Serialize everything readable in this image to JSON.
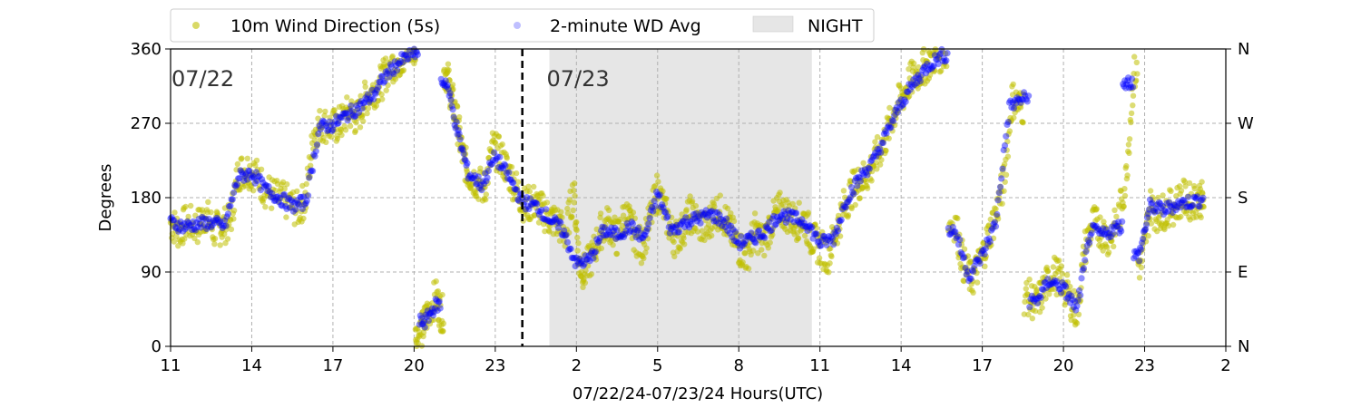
{
  "colors": {
    "wind_5s": "#bfbf00",
    "wd_avg": "#0000ff",
    "night": "#e6e6e6",
    "grid": "#b0b0b0",
    "midnight_line": "#000000"
  },
  "legend": {
    "items": [
      {
        "label": "10m Wind Direction (5s)",
        "marker": "dot",
        "color": "#bfbf00"
      },
      {
        "label": "2-minute WD Avg",
        "marker": "dot",
        "color": "#0000ff"
      },
      {
        "label": "NIGHT",
        "marker": "patch",
        "color": "#e6e6e6"
      }
    ]
  },
  "day_labels": [
    "07/22",
    "07/23"
  ],
  "chart_data": {
    "type": "scatter",
    "xlabel": "07/22/24-07/23/24  Hours(UTC)",
    "ylabel": "Degrees",
    "xlim": [
      11,
      50
    ],
    "ylim": [
      0,
      360
    ],
    "x_ticks": [
      11,
      14,
      17,
      20,
      23,
      26,
      29,
      32,
      35,
      38,
      41,
      44,
      47,
      50
    ],
    "x_tick_labels": [
      "11",
      "14",
      "17",
      "20",
      "23",
      "2",
      "5",
      "8",
      "11",
      "14",
      "17",
      "20",
      "23",
      "2"
    ],
    "y_ticks": [
      0,
      90,
      180,
      270,
      360
    ],
    "y_tick_labels": [
      "0",
      "90",
      "180",
      "270",
      "360"
    ],
    "right_tick_labels": [
      "N",
      "E",
      "S",
      "W",
      "N"
    ],
    "grid": true,
    "legend_position": "top-left, above plot",
    "midnight_x": 24.0,
    "night_span": [
      25.0,
      34.7
    ],
    "day_label_x": [
      11.0,
      25.0
    ],
    "series": [
      {
        "name": "10m Wind Direction (5s)",
        "points": [
          [
            11.0,
            150
          ],
          [
            11.3,
            140
          ],
          [
            11.6,
            150
          ],
          [
            12.0,
            145
          ],
          [
            12.3,
            160
          ],
          [
            12.6,
            140
          ],
          [
            12.9,
            145
          ],
          [
            13.2,
            150
          ],
          [
            13.5,
            210
          ],
          [
            13.8,
            215
          ],
          [
            14.1,
            210
          ],
          [
            14.5,
            190
          ],
          [
            14.9,
            180
          ],
          [
            15.3,
            175
          ],
          [
            15.7,
            165
          ],
          [
            16.0,
            180
          ],
          [
            16.3,
            260
          ],
          [
            16.6,
            270
          ],
          [
            17.0,
            265
          ],
          [
            17.3,
            270
          ],
          [
            17.6,
            285
          ],
          [
            17.9,
            275
          ],
          [
            18.2,
            300
          ],
          [
            18.5,
            310
          ],
          [
            18.8,
            320
          ],
          [
            19.1,
            340
          ],
          [
            19.4,
            345
          ],
          [
            19.7,
            355
          ],
          [
            20.0,
            360
          ],
          [
            20.1,
            10
          ],
          [
            20.3,
            20
          ],
          [
            20.5,
            40
          ],
          [
            20.8,
            60
          ],
          [
            21.0,
            40
          ],
          [
            21.2,
            330
          ],
          [
            21.4,
            300
          ],
          [
            21.6,
            270
          ],
          [
            21.8,
            230
          ],
          [
            22.0,
            210
          ],
          [
            22.3,
            200
          ],
          [
            22.6,
            190
          ],
          [
            22.9,
            240
          ],
          [
            23.2,
            230
          ],
          [
            23.5,
            210
          ],
          [
            23.8,
            190
          ],
          [
            24.1,
            170
          ],
          [
            24.4,
            175
          ],
          [
            24.7,
            165
          ],
          [
            25.0,
            155
          ],
          [
            25.3,
            150
          ],
          [
            25.6,
            135
          ],
          [
            25.9,
            190
          ],
          [
            26.1,
            100
          ],
          [
            26.3,
            90
          ],
          [
            26.6,
            110
          ],
          [
            26.9,
            140
          ],
          [
            27.2,
            150
          ],
          [
            27.5,
            130
          ],
          [
            27.8,
            160
          ],
          [
            28.1,
            140
          ],
          [
            28.4,
            120
          ],
          [
            28.7,
            150
          ],
          [
            29.0,
            190
          ],
          [
            29.3,
            160
          ],
          [
            29.6,
            130
          ],
          [
            29.9,
            140
          ],
          [
            30.2,
            160
          ],
          [
            30.5,
            150
          ],
          [
            30.8,
            140
          ],
          [
            31.1,
            165
          ],
          [
            31.4,
            160
          ],
          [
            31.7,
            140
          ],
          [
            32.0,
            120
          ],
          [
            32.3,
            110
          ],
          [
            32.6,
            140
          ],
          [
            32.9,
            125
          ],
          [
            33.2,
            150
          ],
          [
            33.5,
            165
          ],
          [
            33.8,
            160
          ],
          [
            34.1,
            150
          ],
          [
            34.4,
            155
          ],
          [
            34.7,
            130
          ],
          [
            35.0,
            120
          ],
          [
            35.3,
            110
          ],
          [
            35.6,
            140
          ],
          [
            35.9,
            170
          ],
          [
            36.2,
            190
          ],
          [
            36.5,
            200
          ],
          [
            36.8,
            210
          ],
          [
            37.1,
            230
          ],
          [
            37.4,
            250
          ],
          [
            37.7,
            280
          ],
          [
            38.0,
            300
          ],
          [
            38.3,
            320
          ],
          [
            38.6,
            330
          ],
          [
            38.9,
            340
          ],
          [
            39.2,
            350
          ],
          [
            39.5,
            355
          ],
          [
            40.0,
            150
          ],
          [
            40.3,
            100
          ],
          [
            40.6,
            80
          ],
          [
            40.9,
            100
          ],
          [
            41.2,
            130
          ],
          [
            41.5,
            160
          ],
          [
            41.8,
            200
          ],
          [
            42.1,
            300
          ],
          [
            42.4,
            290
          ],
          [
            42.7,
            60
          ],
          [
            43.0,
            50
          ],
          [
            43.3,
            70
          ],
          [
            43.6,
            90
          ],
          [
            43.9,
            80
          ],
          [
            44.2,
            60
          ],
          [
            44.5,
            40
          ],
          [
            44.8,
            120
          ],
          [
            45.1,
            150
          ],
          [
            45.4,
            140
          ],
          [
            45.7,
            130
          ],
          [
            46.0,
            150
          ],
          [
            46.3,
            200
          ],
          [
            46.6,
            330
          ],
          [
            46.9,
            100
          ],
          [
            47.2,
            170
          ],
          [
            47.5,
            160
          ],
          [
            47.8,
            165
          ],
          [
            48.1,
            170
          ],
          [
            48.4,
            180
          ],
          [
            48.7,
            175
          ],
          [
            49.0,
            180
          ],
          [
            49.2,
            175
          ]
        ]
      },
      {
        "name": "2-minute WD Avg",
        "points": [
          [
            11.0,
            150
          ],
          [
            11.5,
            145
          ],
          [
            12.0,
            148
          ],
          [
            12.5,
            150
          ],
          [
            13.0,
            145
          ],
          [
            13.5,
            205
          ],
          [
            14.0,
            210
          ],
          [
            14.5,
            190
          ],
          [
            15.0,
            180
          ],
          [
            15.5,
            170
          ],
          [
            16.0,
            175
          ],
          [
            16.5,
            265
          ],
          [
            17.0,
            268
          ],
          [
            17.5,
            280
          ],
          [
            18.0,
            290
          ],
          [
            18.5,
            305
          ],
          [
            19.0,
            330
          ],
          [
            19.5,
            345
          ],
          [
            20.0,
            355
          ],
          [
            20.4,
            30
          ],
          [
            20.8,
            50
          ],
          [
            21.2,
            320
          ],
          [
            21.6,
            260
          ],
          [
            22.0,
            210
          ],
          [
            22.5,
            195
          ],
          [
            23.0,
            230
          ],
          [
            23.5,
            205
          ],
          [
            24.0,
            175
          ],
          [
            24.5,
            170
          ],
          [
            25.0,
            155
          ],
          [
            25.5,
            140
          ],
          [
            26.0,
            100
          ],
          [
            26.5,
            105
          ],
          [
            27.0,
            140
          ],
          [
            27.5,
            135
          ],
          [
            28.0,
            145
          ],
          [
            28.5,
            130
          ],
          [
            29.0,
            185
          ],
          [
            29.5,
            140
          ],
          [
            30.0,
            150
          ],
          [
            30.5,
            155
          ],
          [
            31.0,
            160
          ],
          [
            31.5,
            150
          ],
          [
            32.0,
            125
          ],
          [
            32.5,
            130
          ],
          [
            33.0,
            140
          ],
          [
            33.5,
            160
          ],
          [
            34.0,
            155
          ],
          [
            34.5,
            150
          ],
          [
            35.0,
            125
          ],
          [
            35.5,
            130
          ],
          [
            36.0,
            180
          ],
          [
            36.5,
            205
          ],
          [
            37.0,
            225
          ],
          [
            37.5,
            260
          ],
          [
            38.0,
            295
          ],
          [
            38.5,
            320
          ],
          [
            39.0,
            340
          ],
          [
            39.5,
            352
          ],
          [
            40.0,
            140
          ],
          [
            40.5,
            85
          ],
          [
            41.0,
            110
          ],
          [
            41.5,
            150
          ],
          [
            42.0,
            290
          ],
          [
            42.5,
            300
          ],
          [
            43.0,
            55
          ],
          [
            43.5,
            80
          ],
          [
            44.0,
            70
          ],
          [
            44.5,
            45
          ],
          [
            45.0,
            140
          ],
          [
            45.5,
            135
          ],
          [
            46.0,
            145
          ],
          [
            46.4,
            320
          ],
          [
            46.8,
            110
          ],
          [
            47.2,
            170
          ],
          [
            47.7,
            165
          ],
          [
            48.2,
            172
          ],
          [
            48.7,
            175
          ],
          [
            49.2,
            178
          ]
        ]
      }
    ]
  }
}
